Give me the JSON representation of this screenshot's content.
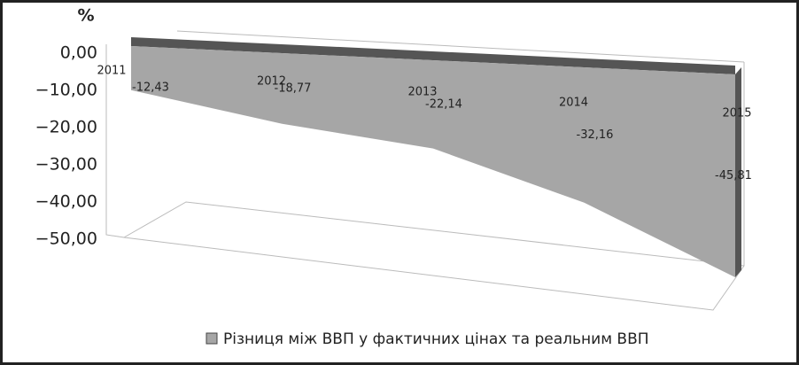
{
  "chart_data": {
    "type": "area3d",
    "ylabel": "%",
    "categories": [
      "2011",
      "2012",
      "2013",
      "2014",
      "2015"
    ],
    "series": [
      {
        "name": "Різниця між ВВП у фактичних цінах та реальним ВВП",
        "color": "#a6a6a6",
        "values": [
          -12.43,
          -18.77,
          -22.14,
          -32.16,
          -45.81
        ],
        "value_labels": [
          "-12,43",
          "-18,77",
          "-22,14",
          "-32,16",
          "-45,81"
        ]
      }
    ],
    "ylim": [
      -50,
      0
    ],
    "yticks": [
      {
        "value": 0,
        "label": "0,00"
      },
      {
        "value": -10,
        "label": "−10,00"
      },
      {
        "value": -20,
        "label": "−20,00"
      },
      {
        "value": -30,
        "label": "−30,00"
      },
      {
        "value": -40,
        "label": "−40,00"
      },
      {
        "value": -50,
        "label": "−50,00"
      }
    ]
  }
}
